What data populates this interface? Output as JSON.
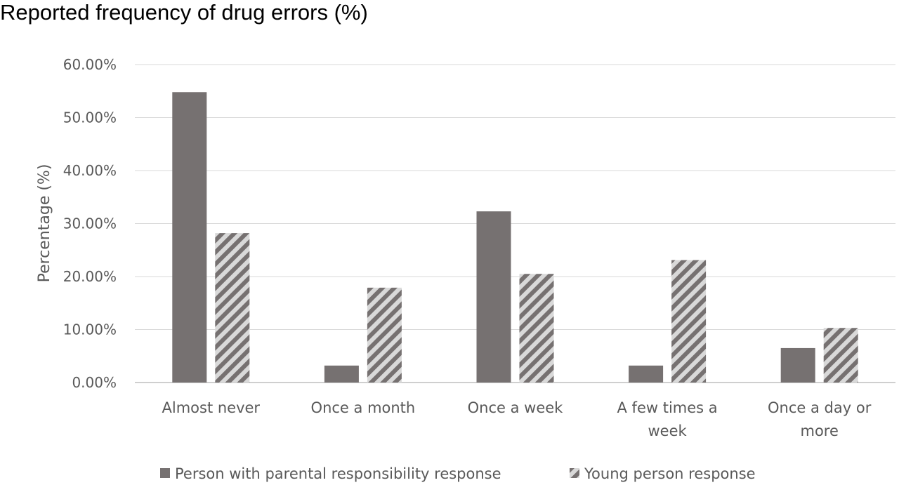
{
  "chart_data": {
    "type": "bar",
    "title": "Reported frequency of drug errors (%)",
    "xlabel": "",
    "ylabel": "Percentage (%)",
    "ylim": [
      0,
      60
    ],
    "yticks": [
      "0.00%",
      "10.00%",
      "20.00%",
      "30.00%",
      "40.00%",
      "50.00%",
      "60.00%"
    ],
    "categories": [
      [
        "Almost never"
      ],
      [
        "Once a month"
      ],
      [
        "Once a week"
      ],
      [
        "A few times a",
        "week"
      ],
      [
        "Once a day or",
        "more"
      ]
    ],
    "series": [
      {
        "name": "Person with parental responsibility response",
        "values": [
          54.8,
          3.2,
          32.3,
          3.2,
          6.5
        ],
        "color": "#767171",
        "pattern": "solid"
      },
      {
        "name": "Young person response",
        "values": [
          28.2,
          17.9,
          20.5,
          23.1,
          10.3
        ],
        "color": "#d9d9d9",
        "pattern": "diagonal-stripes",
        "stripe_color": "#767171"
      }
    ],
    "grid": true,
    "legend_position": "bottom"
  }
}
